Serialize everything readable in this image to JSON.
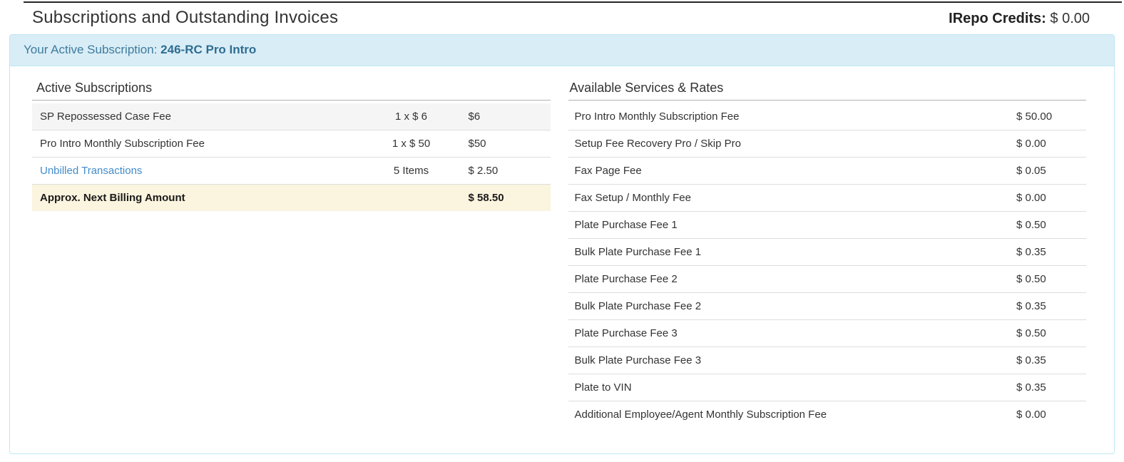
{
  "header": {
    "title": "Subscriptions and Outstanding Invoices",
    "credits_label": "IRepo Credits:",
    "credits_value": "$ 0.00"
  },
  "banner": {
    "label": "Your Active Subscription:",
    "value": "246-RC Pro Intro"
  },
  "active_subscriptions": {
    "title": "Active Subscriptions",
    "rows": [
      {
        "label": "SP Repossessed Case Fee",
        "qty": "1 x $ 6",
        "amount": "$6",
        "type": "striped"
      },
      {
        "label": "Pro Intro Monthly Subscription Fee",
        "qty": "1 x $ 50",
        "amount": "$50",
        "type": "normal"
      },
      {
        "label": "Unbilled Transactions",
        "qty": "5 Items",
        "amount": "$ 2.50",
        "type": "link"
      },
      {
        "label": "Approx. Next Billing Amount",
        "qty": "",
        "amount": "$ 58.50",
        "type": "total"
      }
    ]
  },
  "available_services": {
    "title": "Available Services & Rates",
    "rows": [
      {
        "service": "Pro Intro Monthly Subscription Fee",
        "rate": "$ 50.00"
      },
      {
        "service": "Setup Fee Recovery Pro / Skip Pro",
        "rate": "$ 0.00"
      },
      {
        "service": "Fax Page Fee",
        "rate": "$ 0.05"
      },
      {
        "service": "Fax Setup / Monthly Fee",
        "rate": "$ 0.00"
      },
      {
        "service": "Plate Purchase Fee 1",
        "rate": "$ 0.50"
      },
      {
        "service": "Bulk Plate Purchase Fee 1",
        "rate": "$ 0.35"
      },
      {
        "service": "Plate Purchase Fee 2",
        "rate": "$ 0.50"
      },
      {
        "service": "Bulk Plate Purchase Fee 2",
        "rate": "$ 0.35"
      },
      {
        "service": "Plate Purchase Fee 3",
        "rate": "$ 0.50"
      },
      {
        "service": "Bulk Plate Purchase Fee 3",
        "rate": "$ 0.35"
      },
      {
        "service": "Plate to VIN",
        "rate": "$ 0.35"
      },
      {
        "service": "Additional Employee/Agent Monthly Subscription Fee",
        "rate": "$ 0.00"
      }
    ]
  },
  "colors": {
    "banner_bg": "#d9edf7",
    "banner_border": "#bce8f1",
    "banner_text": "#31708f",
    "link": "#428bca",
    "total_row_bg": "#fbf4de",
    "striped_row_bg": "#f5f5f5",
    "row_border": "#dddddd"
  }
}
